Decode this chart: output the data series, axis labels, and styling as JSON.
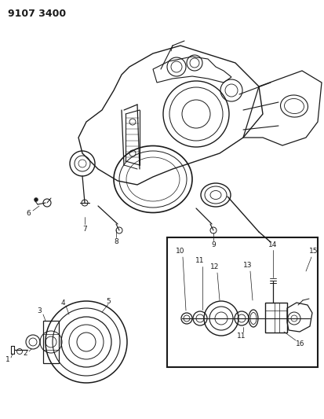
{
  "title": "9107 3400",
  "bg_color": "#ffffff",
  "line_color": "#1a1a1a",
  "title_fontsize": 9,
  "fig_width": 4.13,
  "fig_height": 5.33,
  "dpi": 100
}
